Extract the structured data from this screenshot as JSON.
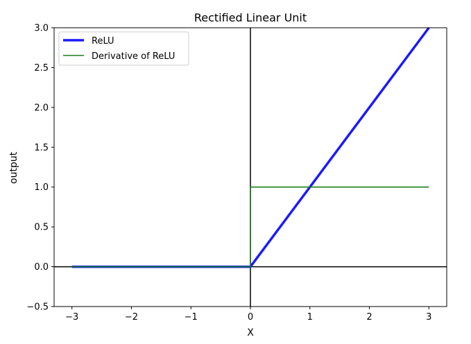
{
  "chart_data": {
    "type": "line",
    "title": "Rectified Linear Unit",
    "xlabel": "X",
    "ylabel": "output",
    "xlim": [
      -3.3,
      3.3
    ],
    "ylim": [
      -0.5,
      3.0
    ],
    "xticks": [
      -3,
      -2,
      -1,
      0,
      1,
      2,
      3
    ],
    "xtick_labels": [
      "−3",
      "−2",
      "−1",
      "0",
      "1",
      "2",
      "3"
    ],
    "yticks": [
      -0.5,
      0.0,
      0.5,
      1.0,
      1.5,
      2.0,
      2.5,
      3.0
    ],
    "ytick_labels": [
      "−0.5",
      "0.0",
      "0.5",
      "1.0",
      "1.5",
      "2.0",
      "2.5",
      "3.0"
    ],
    "grid": false,
    "legend_position": "upper-left",
    "axis_lines": {
      "x0_color": "#000000",
      "y0_color": "#000000"
    },
    "series": [
      {
        "name": "ReLU",
        "color": "#1a1aff",
        "line_weight": "thick",
        "x": [
          -3,
          0,
          3
        ],
        "y": [
          0,
          0,
          3
        ]
      },
      {
        "name": "Derivative of ReLU",
        "color": "#1a7f1a",
        "line_weight": "normal",
        "x": [
          -3,
          0,
          0,
          3
        ],
        "y": [
          0,
          0,
          1,
          1
        ]
      }
    ]
  }
}
